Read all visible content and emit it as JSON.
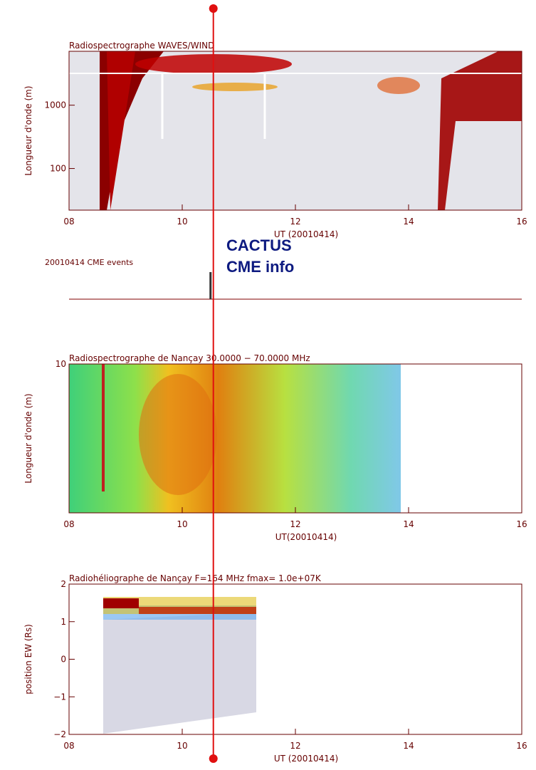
{
  "chart_data": [
    {
      "type": "spectrogram",
      "title": "Radiospectrographe WAVES/WIND",
      "ylabel": "Longueur d'onde (m)",
      "xlabel": "UT (20010414)",
      "xlim": [
        8,
        16
      ],
      "xticks": [
        {
          "value": 8,
          "label": "08"
        },
        10,
        12,
        14,
        16
      ],
      "ylim": [
        22,
        7100
      ],
      "yticks": [
        100,
        1000
      ],
      "log_y": true
    },
    {
      "type": "spectrogram",
      "title": "Radiospectrographe de Nançay 30.0000 − 70.0000 MHz",
      "ylabel": "Longueur d'onde (m)",
      "xlabel": "UT(20010414)",
      "xlim": [
        8,
        16
      ],
      "xticks": [
        {
          "value": 8,
          "label": "08"
        },
        10,
        12,
        14,
        16
      ],
      "ylim": [
        1,
        10
      ],
      "yticks": [
        10
      ],
      "log_y": true
    },
    {
      "type": "spectrogram",
      "title": "Radiohéliographe de Nançay F=164 MHz  fmax= 1.0e+07K",
      "ylabel": "position EW (Rs)",
      "xlabel": "UT (20010414)",
      "xlim": [
        8,
        16
      ],
      "xticks": [
        {
          "value": 8,
          "label": "08"
        },
        10,
        12,
        14,
        16
      ],
      "ylim": [
        -2,
        2
      ],
      "yticks": [
        {
          "value": -2,
          "label": "−2"
        },
        {
          "value": -1,
          "label": "−1"
        },
        0,
        1,
        2
      ],
      "log_y": false
    }
  ],
  "cme_events": {
    "label": "20010414 CME events",
    "times": [
      10.5
    ]
  },
  "cursor": {
    "time": 10.55
  },
  "overlay": {
    "lines": [
      "CACTUS",
      "CME info"
    ]
  }
}
